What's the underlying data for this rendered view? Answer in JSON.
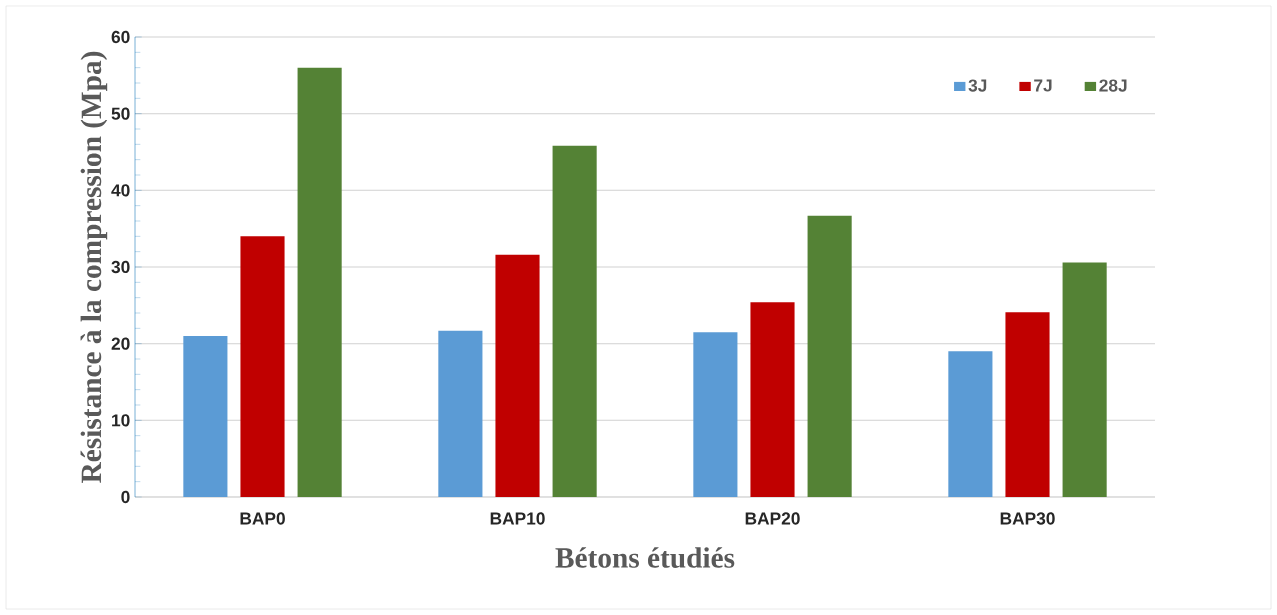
{
  "chart_data": {
    "type": "bar",
    "xlabel": "Bétons étudiés",
    "ylabel": "Résistance à la compression (Mpa)",
    "categories": [
      "BAP0",
      "BAP10",
      "BAP20",
      "BAP30"
    ],
    "series": [
      {
        "name": "3J",
        "color": "#5b9bd5",
        "values": [
          21,
          21.7,
          21.5,
          19.0
        ]
      },
      {
        "name": "7J",
        "color": "#c00000",
        "values": [
          34.0,
          31.6,
          25.4,
          24.1
        ]
      },
      {
        "name": "28J",
        "color": "#548235",
        "values": [
          56.0,
          45.8,
          36.7,
          30.6
        ]
      }
    ],
    "ylim": [
      0,
      60
    ],
    "yticks": [
      0,
      10,
      20,
      30,
      40,
      50,
      60
    ],
    "grid": "y",
    "legend": "top right"
  }
}
